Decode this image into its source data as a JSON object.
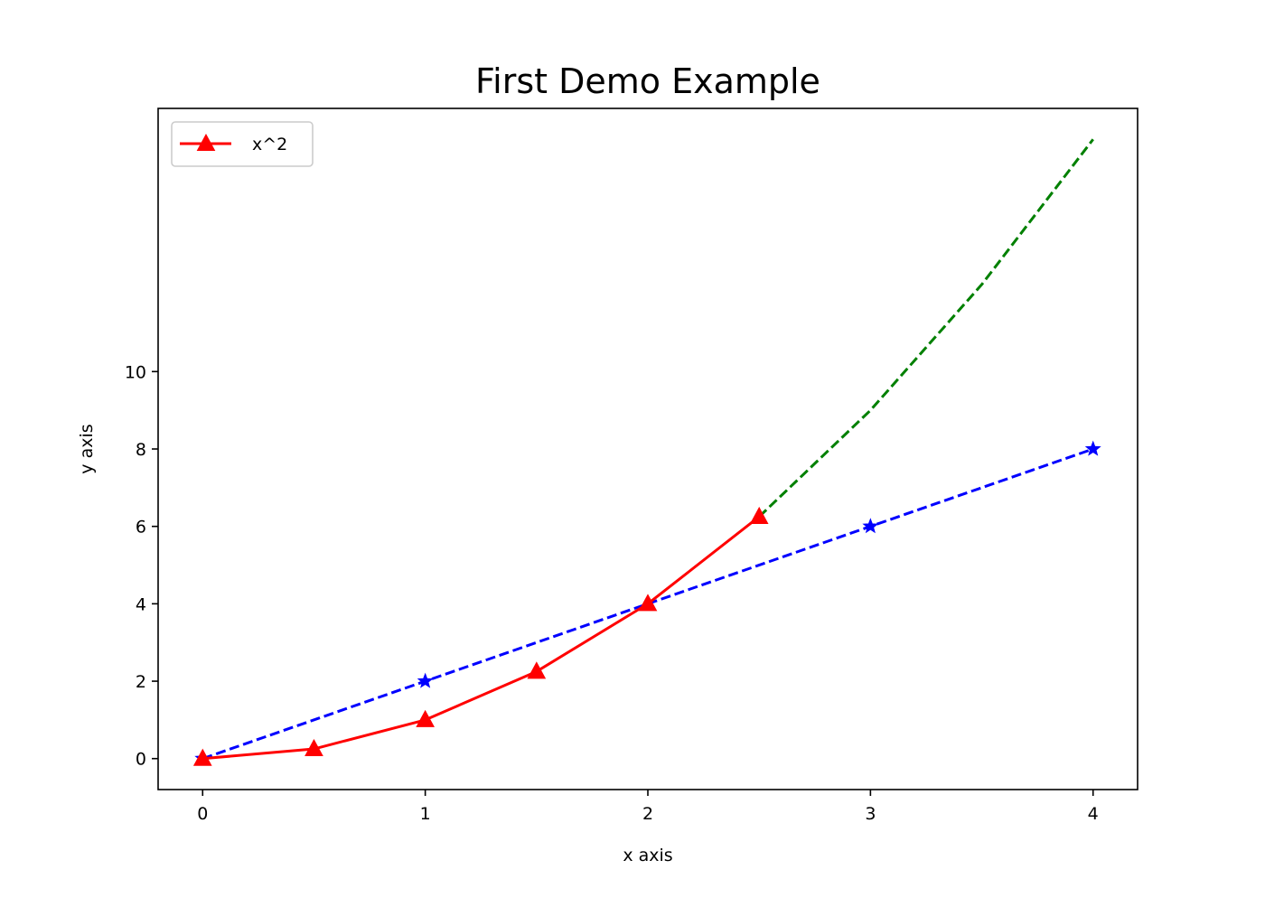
{
  "chart_data": {
    "type": "line",
    "title": "First Demo Example",
    "xlabel": "x axis",
    "ylabel": "y axis",
    "xlim": [
      -0.2,
      4.2
    ],
    "ylim": [
      -0.8,
      16.8
    ],
    "xticks": [
      0,
      1,
      2,
      3,
      4
    ],
    "yticks": [
      0,
      2,
      4,
      6,
      8,
      10
    ],
    "xtick_labels": [
      "0",
      "1",
      "2",
      "3",
      "4"
    ],
    "ytick_labels": [
      "0",
      "2",
      "4",
      "6",
      "8",
      "10"
    ],
    "grid": false,
    "legend": {
      "placement": "top-left",
      "entries": [
        "x^2"
      ]
    },
    "series": [
      {
        "name": "x^2",
        "color": "#ff0000",
        "linestyle": "solid",
        "marker": "triangle-up",
        "x": [
          0,
          0.5,
          1,
          1.5,
          2,
          2.5
        ],
        "y": [
          0,
          0.25,
          1,
          2.25,
          4,
          6.25
        ]
      },
      {
        "color": "#0000ff",
        "linestyle": "dashed",
        "marker": "star",
        "marker_at": [
          0,
          1,
          3,
          4
        ],
        "x": [
          0,
          1,
          2,
          3,
          4
        ],
        "y": [
          0,
          2,
          4,
          6,
          8
        ]
      },
      {
        "color": "#008000",
        "linestyle": "dashed",
        "marker": "none",
        "x": [
          2.5,
          3,
          3.5,
          4
        ],
        "y": [
          6.25,
          9,
          12.25,
          16
        ]
      }
    ]
  }
}
